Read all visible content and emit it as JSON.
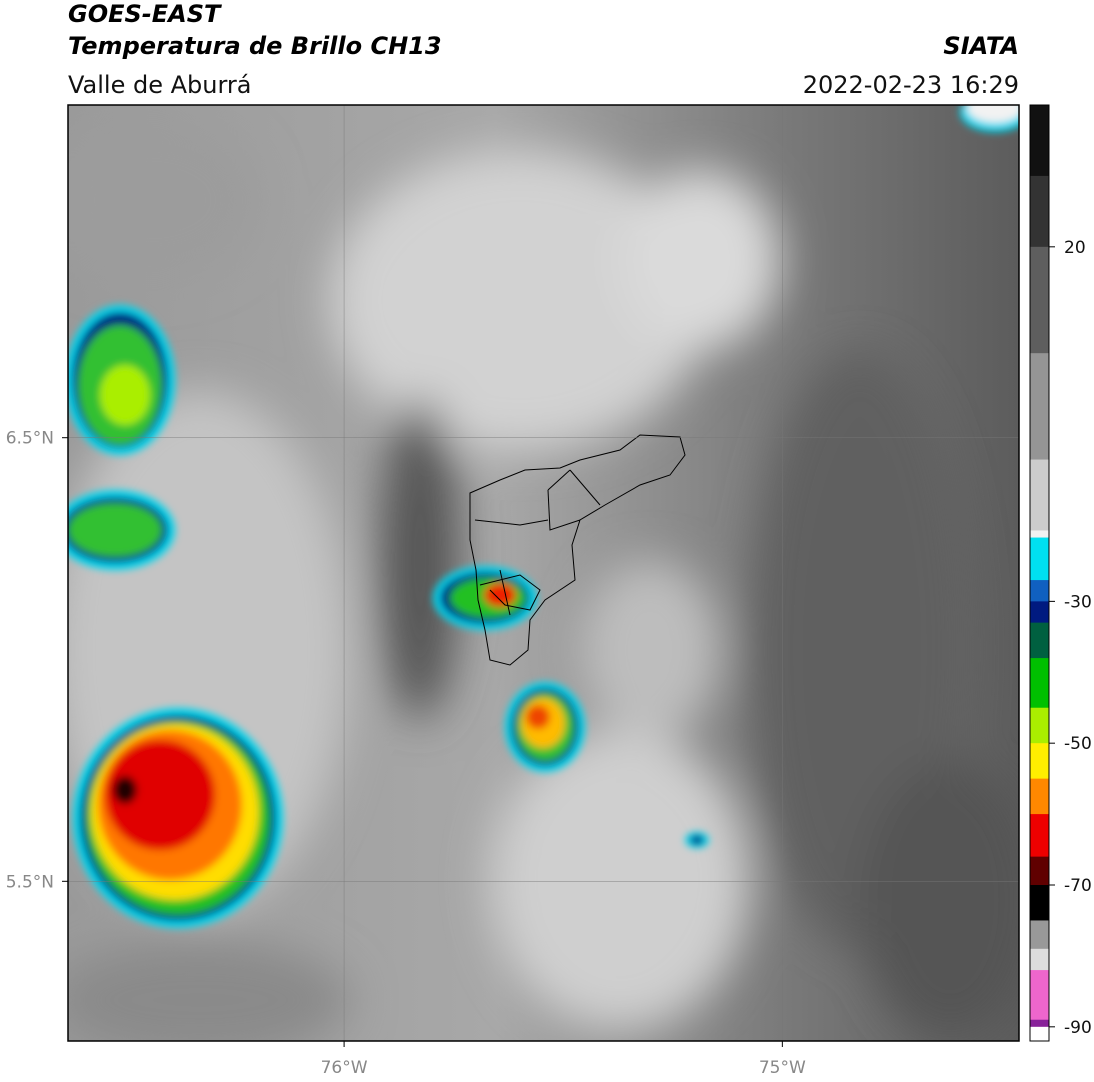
{
  "header": {
    "title": "GOES-EAST",
    "subtitle": "Temperatura de Brillo CH13",
    "region": "Valle de Aburrá",
    "source": "SIATA",
    "datetime": "2022-02-23 16:29"
  },
  "map": {
    "xlim": [
      -76.63,
      -74.46
    ],
    "ylim": [
      5.14,
      7.25
    ],
    "xticks": [
      {
        "value": -76,
        "label": "76°W"
      },
      {
        "value": -75,
        "label": "75°W"
      }
    ],
    "yticks": [
      {
        "value": 6.5,
        "label": "6.5°N"
      },
      {
        "value": 5.5,
        "label": "5.5°N"
      }
    ],
    "grid": true
  },
  "colorbar": {
    "lim": [
      -92,
      40
    ],
    "ticks": [
      20,
      -30,
      -50,
      -70,
      -90
    ],
    "stops": [
      {
        "value": 40,
        "color": "#111111"
      },
      {
        "value": 30,
        "color": "#333333"
      },
      {
        "value": 20,
        "color": "#5e5e5e"
      },
      {
        "value": 5,
        "color": "#959595"
      },
      {
        "value": -10,
        "color": "#cccccc"
      },
      {
        "value": -20,
        "color": "#f2f2f2"
      },
      {
        "value": -21,
        "color": "#00e0f0"
      },
      {
        "value": -27,
        "color": "#1060c0"
      },
      {
        "value": -30,
        "color": "#001a80"
      },
      {
        "value": -33,
        "color": "#006040"
      },
      {
        "value": -38,
        "color": "#00c000"
      },
      {
        "value": -45,
        "color": "#aaee00"
      },
      {
        "value": -50,
        "color": "#ffee00"
      },
      {
        "value": -55,
        "color": "#ff8800"
      },
      {
        "value": -60,
        "color": "#ee0000"
      },
      {
        "value": -66,
        "color": "#600000"
      },
      {
        "value": -70,
        "color": "#000000"
      },
      {
        "value": -75,
        "color": "#999999"
      },
      {
        "value": -79,
        "color": "#dddddd"
      },
      {
        "value": -82,
        "color": "#ee66cc"
      },
      {
        "value": -89,
        "color": "#882299"
      },
      {
        "value": -90,
        "color": "#ffffff"
      },
      {
        "value": -92,
        "color": "#ffffff"
      }
    ]
  }
}
